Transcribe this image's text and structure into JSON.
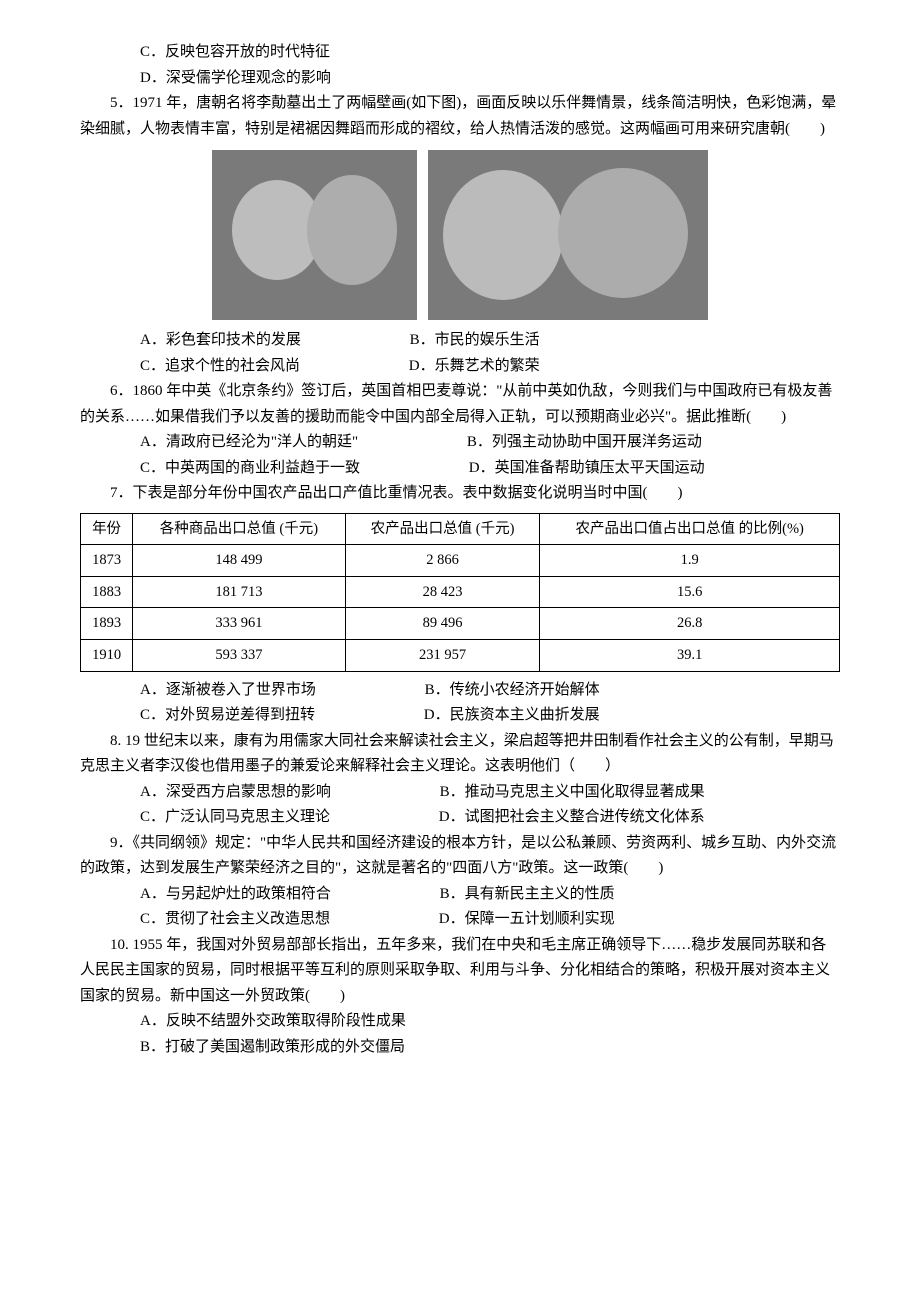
{
  "q4": {
    "C": "C．反映包容开放的时代特征",
    "D": "D．深受儒学伦理观念的影响"
  },
  "q5": {
    "stem": "5．1971 年，唐朝名将李勣墓出土了两幅壁画(如下图)，画面反映以乐伴舞情景，线条简洁明快，色彩饱满，晕染细腻，人物表情丰富，特别是裙裾因舞蹈而形成的褶纹，给人热情活泼的感觉。这两幅画可用来研究唐朝(　　)",
    "A": "A．彩色套印技术的发展",
    "B": "B．市民的娱乐生活",
    "C": "C．追求个性的社会风尚",
    "D": "D．乐舞艺术的繁荣"
  },
  "q6": {
    "stem": "6．1860 年中英《北京条约》签订后，英国首相巴麦尊说：\"从前中英如仇敌，今则我们与中国政府已有极友善的关系……如果借我们予以友善的援助而能令中国内部全局得入正轨，可以预期商业必兴\"。据此推断(　　)",
    "A": "A．清政府已经沦为\"洋人的朝廷\"",
    "B": "B．列强主动协助中国开展洋务运动",
    "C": "C．中英两国的商业利益趋于一致",
    "D": "D．英国准备帮助镇压太平天国运动"
  },
  "q7": {
    "stem": "7．下表是部分年份中国农产品出口产值比重情况表。表中数据变化说明当时中国(　　)",
    "columns": [
      "年份",
      "各种商品出口总值 (千元)",
      "农产品出口总值 (千元)",
      "农产品出口值占出口总值 的比例(%)"
    ],
    "rows": [
      [
        "1873",
        "148 499",
        "2 866",
        "1.9"
      ],
      [
        "1883",
        "181 713",
        "28 423",
        "15.6"
      ],
      [
        "1893",
        "333 961",
        "89 496",
        "26.8"
      ],
      [
        "1910",
        "593 337",
        "231 957",
        "39.1"
      ]
    ],
    "A": "A．逐渐被卷入了世界市场",
    "B": "B．传统小农经济开始解体",
    "C": "C．对外贸易逆差得到扭转",
    "D": "D．民族资本主义曲折发展"
  },
  "q8": {
    "stem": "8. 19 世纪末以来，康有为用儒家大同社会来解读社会主义，梁启超等把井田制看作社会主义的公有制，早期马克思主义者李汉俊也借用墨子的兼爱论来解释社会主义理论。这表明他们（　　）",
    "A": "A．深受西方启蒙思想的影响",
    "B": "B．推动马克思主义中国化取得显著成果",
    "C": "C．广泛认同马克思主义理论",
    "D": "D．试图把社会主义整合进传统文化体系"
  },
  "q9": {
    "stem": "9．《共同纲领》规定：\"中华人民共和国经济建设的根本方针，是以公私兼顾、劳资两利、城乡互助、内外交流的政策，达到发展生产繁荣经济之目的\"，这就是著名的\"四面八方\"政策。这一政策(　　)",
    "A": "A．与另起炉灶的政策相符合",
    "B": "B．具有新民主主义的性质",
    "C": "C．贯彻了社会主义改造思想",
    "D": "D．保障一五计划顺利实现"
  },
  "q10": {
    "stem": "10. 1955 年，我国对外贸易部部长指出，五年多来，我们在中央和毛主席正确领导下……稳步发展同苏联和各人民民主国家的贸易，同时根据平等互利的原则采取争取、利用与斗争、分化相结合的策略，积极开展对资本主义国家的贸易。新中国这一外贸政策(　　)",
    "A": "A．反映不结盟外交政策取得阶段性成果",
    "B": "B．打破了美国遏制政策形成的外交僵局"
  }
}
